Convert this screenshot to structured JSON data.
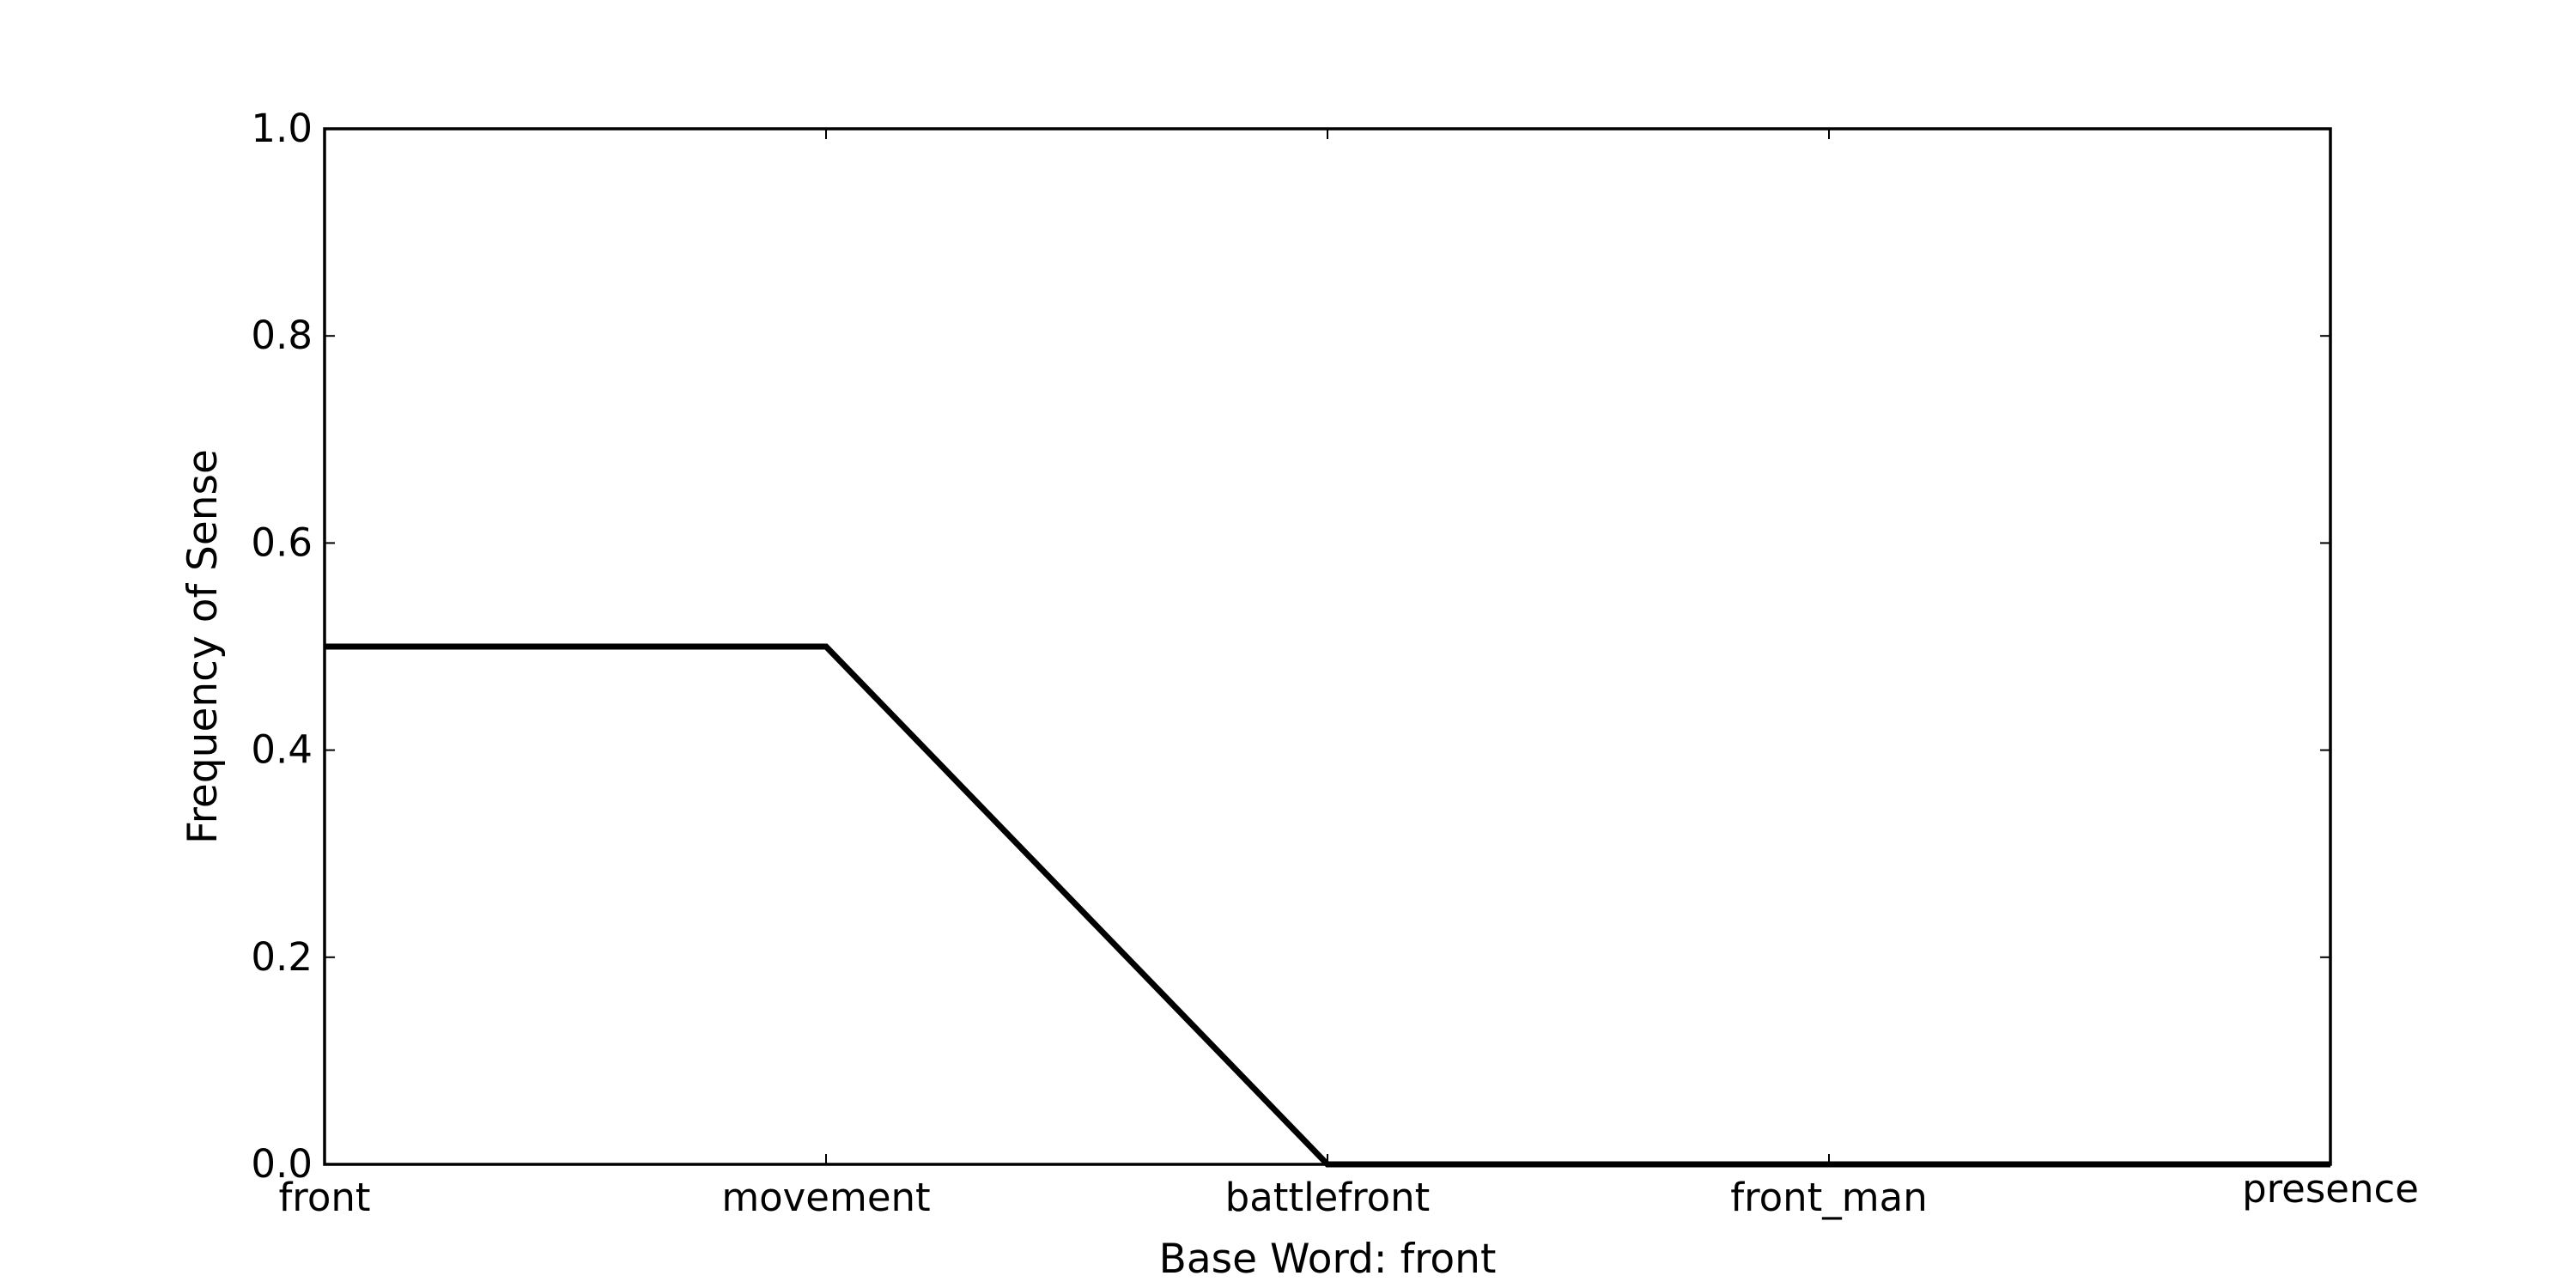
{
  "chart_data": {
    "type": "line",
    "xlabel": "Base Word: front",
    "ylabel": "Frequency of Sense",
    "categories": [
      "front",
      "movement",
      "battlefront",
      "front_man",
      "presence"
    ],
    "series": [
      {
        "values": [
          0.5,
          0.5,
          0.0,
          0.0,
          0.0
        ]
      }
    ],
    "ylim": [
      0,
      1
    ],
    "yticks": [
      "0.0",
      "0.2",
      "0.4",
      "0.6",
      "0.8",
      "1.0"
    ],
    "grid": false,
    "line_color": "#000000"
  }
}
